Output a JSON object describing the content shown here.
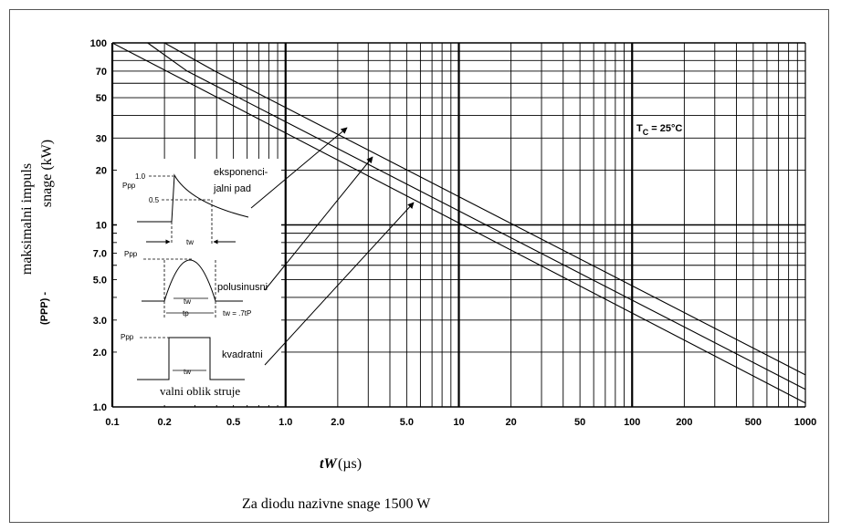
{
  "chart_data": {
    "type": "line",
    "title": "",
    "xlabel": "tW(µs)",
    "xlabel_italic_part": "tW",
    "xlabel_unit": "(µs)",
    "ylabel_line1": "maksimalni impuls",
    "ylabel_line2": "snage (kW)",
    "ylabel_symbol": "(PPP) -",
    "x_scale": "log",
    "y_scale": "log",
    "xlim": [
      0.1,
      1000
    ],
    "ylim": [
      1.0,
      100
    ],
    "x_tick_labels": [
      {
        "v": 0.1,
        "t": "0.1"
      },
      {
        "v": 0.2,
        "t": "0.2"
      },
      {
        "v": 0.5,
        "t": "0.5"
      },
      {
        "v": 1,
        "t": "1.0"
      },
      {
        "v": 2,
        "t": "2.0"
      },
      {
        "v": 5,
        "t": "5.0"
      },
      {
        "v": 10,
        "t": "10"
      },
      {
        "v": 20,
        "t": "20"
      },
      {
        "v": 50,
        "t": "50"
      },
      {
        "v": 100,
        "t": "100"
      },
      {
        "v": 200,
        "t": "200"
      },
      {
        "v": 500,
        "t": "500"
      },
      {
        "v": 1000,
        "t": "1000"
      }
    ],
    "y_tick_labels": [
      {
        "v": 1,
        "t": "1.0"
      },
      {
        "v": 2,
        "t": "2.0"
      },
      {
        "v": 3,
        "t": "3.0"
      },
      {
        "v": 5,
        "t": "5.0"
      },
      {
        "v": 7,
        "t": "7.0"
      },
      {
        "v": 10,
        "t": "10"
      },
      {
        "v": 20,
        "t": "20"
      },
      {
        "v": 30,
        "t": "30"
      },
      {
        "v": 50,
        "t": "50"
      },
      {
        "v": 70,
        "t": "70"
      },
      {
        "v": 100,
        "t": "100"
      }
    ],
    "grid": true,
    "series": [
      {
        "name": "eksponencijalni pad",
        "x": [
          0.2,
          0.39,
          1000
        ],
        "y": [
          100,
          70,
          1.5
        ]
      },
      {
        "name": "polusinusni",
        "x": [
          0.16,
          0.27,
          1000
        ],
        "y": [
          100,
          70,
          1.25
        ]
      },
      {
        "name": "kvadratni",
        "x": [
          0.1,
          1000
        ],
        "y": [
          100,
          1.05
        ]
      }
    ],
    "annotations": {
      "tc": "TC = 25°C",
      "tc_main": "T",
      "tc_sub": "C",
      "tc_rest": " = 25°C",
      "exp_label_1": "eksponenci-",
      "exp_label_2": "jalni pad",
      "half_sine_label": "polusinusni",
      "square_label": "kvadratni",
      "waveform_caption": "valni oblik struje",
      "ppp": "Ppp",
      "v10": "1.0",
      "v05": "0.5",
      "tw": "tw",
      "tp": "tp",
      "tw_eq": "tw = .7t",
      "tw_eq_tail": "P"
    },
    "footer": "Za diodu nazivne snage 1500 W"
  }
}
